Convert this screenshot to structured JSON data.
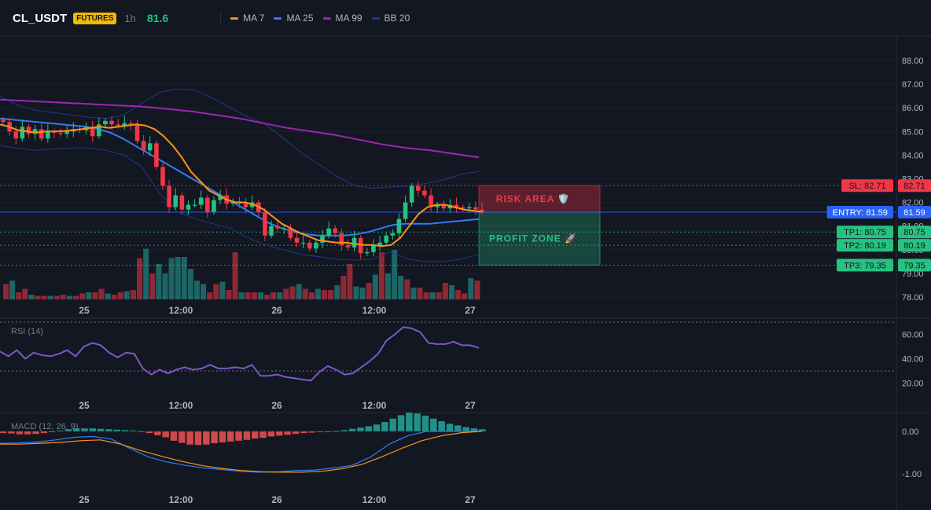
{
  "header": {
    "symbol": "CL_USDT",
    "badge": "FUTURES",
    "interval": "1h",
    "price": "81.6"
  },
  "legend": [
    {
      "name": "MA 7",
      "color": "#f7931a"
    },
    {
      "name": "MA 25",
      "color": "#2f7cf6"
    },
    {
      "name": "MA 99",
      "color": "#9c27b0"
    },
    {
      "name": "BB 20",
      "color": "#1e3a8a"
    }
  ],
  "colors": {
    "up": "#26c281",
    "down": "#f23645",
    "background": "#131722"
  },
  "chart_data": [
    {
      "type": "candlestick",
      "xlabels": [
        "25",
        "12:00",
        "26",
        "12:00",
        "27"
      ],
      "ylim": [
        78,
        88.5
      ],
      "yticks": [
        "78.00",
        "79.00",
        "80.00",
        "81.00",
        "82.00",
        "83.00",
        "84.00",
        "85.00",
        "86.00",
        "87.00",
        "88.00"
      ],
      "closes": [
        85.4,
        85.0,
        84.7,
        85.2,
        84.9,
        85.1,
        84.7,
        85.0,
        84.95,
        84.9,
        85.0,
        85.1,
        85.05,
        85.2,
        84.8,
        85.3,
        85.45,
        85.3,
        85.25,
        85.35,
        85.3,
        84.6,
        84.2,
        84.5,
        83.5,
        82.7,
        81.8,
        82.3,
        81.7,
        81.9,
        81.9,
        82.2,
        81.6,
        82.1,
        82.3,
        81.95,
        82.05,
        81.95,
        81.8,
        82.0,
        81.6,
        80.6,
        81.0,
        80.9,
        80.9,
        80.5,
        80.3,
        80.3,
        80.05,
        80.3,
        80.6,
        80.9,
        80.7,
        80.2,
        80.1,
        80.5,
        79.85,
        79.9,
        80.2,
        80.3,
        80.6,
        80.7,
        81.3,
        82.0,
        82.7,
        82.5,
        82.3,
        81.8,
        81.9,
        81.75,
        81.9,
        81.8,
        81.75,
        81.8,
        81.7,
        81.6
      ],
      "series": [
        {
          "name": "MA 7",
          "color": "#f7931a",
          "values": [
            85.3,
            85.2,
            85.05,
            85.0,
            84.95,
            85.0,
            85.0,
            85.02,
            85.05,
            85.1,
            85.15,
            85.2,
            85.15,
            85.2,
            85.25,
            85.3,
            85.25,
            85.1,
            84.8,
            84.4,
            83.9,
            83.3,
            82.9,
            82.5,
            82.3,
            82.1,
            82.0,
            82.0,
            81.9,
            81.7,
            81.4,
            81.1,
            80.9,
            80.7,
            80.55,
            80.4,
            80.35,
            80.3,
            80.3,
            80.25,
            80.2,
            80.2,
            80.15,
            80.2,
            80.5,
            81.0,
            81.5,
            81.8,
            81.9,
            81.9,
            81.8,
            81.7,
            81.65,
            81.6
          ]
        },
        {
          "name": "MA 25",
          "color": "#2f7cf6",
          "values": [
            85.55,
            85.5,
            85.45,
            85.4,
            85.35,
            85.3,
            85.25,
            85.2,
            85.1,
            84.95,
            84.7,
            84.4,
            84.1,
            83.8,
            83.5,
            83.2,
            82.9,
            82.6,
            82.3,
            82.0,
            81.7,
            81.4,
            81.1,
            80.9,
            80.75,
            80.65,
            80.6,
            80.6,
            80.6,
            80.65,
            80.75,
            80.9,
            81.05,
            81.1,
            81.1,
            81.1,
            81.15,
            81.2,
            81.25,
            81.3
          ]
        },
        {
          "name": "MA 99",
          "color": "#9c27b0",
          "values": [
            86.35,
            86.3,
            86.25,
            86.2,
            86.15,
            86.1,
            86.05,
            85.95,
            85.85,
            85.7,
            85.55,
            85.35,
            85.15,
            85.0,
            84.85,
            84.65,
            84.45,
            84.3,
            84.2,
            84.05,
            83.9
          ]
        },
        {
          "name": "BB upper",
          "color": "#1e3a8a",
          "values": [
            86.5,
            86.1,
            85.9,
            85.8,
            85.7,
            85.6,
            85.55,
            85.7,
            86.2,
            86.65,
            86.8,
            86.75,
            86.4,
            86.0,
            85.6,
            85.3,
            84.7,
            84.1,
            83.6,
            83.1,
            82.7,
            82.6,
            82.65,
            82.7,
            82.8,
            82.95,
            83.2,
            83.3
          ]
        },
        {
          "name": "BB lower",
          "color": "#1e3a8a",
          "values": [
            84.4,
            84.3,
            84.2,
            84.25,
            84.3,
            84.3,
            84.2,
            84.0,
            83.5,
            82.4,
            81.6,
            81.3,
            81.1,
            80.9,
            80.5,
            80.2,
            80.0,
            79.8,
            79.7,
            79.6,
            79.55,
            79.6,
            79.9,
            79.6,
            79.5,
            79.5,
            79.6,
            79.8
          ]
        }
      ],
      "volumes": [
        1.3,
        1.6,
        0.6,
        0.9,
        0.4,
        0.3,
        0.3,
        0.3,
        0.3,
        0.4,
        0.3,
        0.3,
        0.5,
        0.6,
        0.6,
        0.9,
        0.5,
        0.4,
        0.6,
        0.7,
        0.8,
        3.5,
        4.3,
        2.2,
        3.0,
        2.2,
        3.5,
        3.6,
        3.6,
        2.6,
        1.6,
        1.3,
        0.6,
        1.3,
        1.5,
        0.8,
        4.0,
        0.6,
        0.6,
        0.6,
        0.6,
        0.4,
        0.6,
        0.6,
        0.9,
        1.1,
        1.3,
        0.9,
        0.6,
        0.9,
        0.8,
        0.8,
        1.2,
        2.0,
        3.0,
        1.1,
        1.0,
        1.4,
        2.1,
        4.0,
        2.2,
        4.2,
        2.0,
        1.7,
        1.0,
        1.0,
        0.6,
        0.6,
        0.6,
        1.4,
        1.2,
        0.8,
        0.5,
        1.8,
        1.6
      ],
      "levels": [
        {
          "label": "SL: 82.71",
          "price": "82.71",
          "value": 82.71,
          "color": "#f23645"
        },
        {
          "label": "ENTRY: 81.59",
          "price": "81.59",
          "value": 81.59,
          "color": "#2962ff"
        },
        {
          "label": "TP1: 80.75",
          "price": "80.75",
          "value": 80.75,
          "color": "#26c281"
        },
        {
          "label": "TP2: 80.19",
          "price": "80.19",
          "value": 80.19,
          "color": "#26c281"
        },
        {
          "label": "TP3: 79.35",
          "price": "79.35",
          "value": 79.35,
          "color": "#26c281"
        }
      ],
      "zones": [
        {
          "label": "RISK AREA 🛡️",
          "from": 82.71,
          "to": 81.59,
          "color": "#f23645"
        },
        {
          "label": "PROFIT ZONE 🚀",
          "from": 81.59,
          "to": 79.35,
          "color": "#26c281"
        }
      ]
    },
    {
      "type": "line",
      "title": "RSI (14)",
      "xlabels": [
        "25",
        "12:00",
        "26",
        "12:00",
        "27"
      ],
      "ylim": [
        10,
        70
      ],
      "yticks": [
        "20.00",
        "40.00",
        "60.00"
      ],
      "bands": [
        70,
        30
      ],
      "series": [
        {
          "name": "RSI",
          "color": "#7e57c2",
          "values": [
            46,
            42,
            47,
            40,
            45,
            43,
            42,
            44,
            47,
            42,
            50,
            53,
            51,
            45,
            41,
            45,
            44,
            32,
            27,
            31,
            28,
            31,
            33,
            31,
            32,
            35,
            32,
            32,
            33,
            32,
            35,
            26,
            26,
            27,
            25,
            24,
            23,
            22,
            29,
            34,
            31,
            27,
            28,
            33,
            38,
            44,
            55,
            60,
            66,
            65,
            62,
            53,
            52,
            52,
            54,
            51,
            51,
            49
          ]
        }
      ]
    },
    {
      "type": "bar",
      "title": "MACD (12, 26, 9)",
      "xlabels": [
        "25",
        "12:00",
        "26",
        "12:00",
        "27"
      ],
      "ylim": [
        -1.35,
        0.35
      ],
      "yticks": [
        "0.00",
        "-1.00"
      ],
      "histogram": [
        -0.04,
        -0.05,
        -0.07,
        -0.07,
        -0.06,
        -0.04,
        -0.02,
        0.02,
        0.05,
        0.07,
        0.07,
        0.07,
        0.06,
        0.05,
        0.04,
        0.03,
        0.02,
        -0.01,
        -0.04,
        -0.09,
        -0.14,
        -0.22,
        -0.27,
        -0.31,
        -0.32,
        -0.31,
        -0.28,
        -0.26,
        -0.24,
        -0.22,
        -0.2,
        -0.17,
        -0.15,
        -0.12,
        -0.1,
        -0.08,
        -0.06,
        -0.04,
        -0.03,
        -0.02,
        -0.01,
        0.01,
        0.03,
        0.06,
        0.09,
        0.12,
        0.16,
        0.22,
        0.3,
        0.38,
        0.44,
        0.42,
        0.37,
        0.3,
        0.24,
        0.18,
        0.14,
        0.1,
        0.07,
        0.05
      ],
      "series": [
        {
          "name": "MACD",
          "color": "#2f7cf6",
          "values": [
            -0.28,
            -0.27,
            -0.25,
            -0.2,
            -0.14,
            -0.12,
            -0.18,
            -0.4,
            -0.6,
            -0.72,
            -0.8,
            -0.86,
            -0.9,
            -0.94,
            -0.96,
            -0.95,
            -0.92,
            -0.91,
            -0.86,
            -0.8,
            -0.6,
            -0.3,
            -0.1,
            0.0,
            0.0,
            0.0,
            0.0
          ]
        },
        {
          "name": "Signal",
          "color": "#f7931a",
          "values": [
            -0.3,
            -0.3,
            -0.28,
            -0.26,
            -0.22,
            -0.2,
            -0.3,
            -0.45,
            -0.58,
            -0.7,
            -0.8,
            -0.87,
            -0.92,
            -0.95,
            -0.96,
            -0.96,
            -0.94,
            -0.88,
            -0.78,
            -0.6,
            -0.4,
            -0.22,
            -0.1,
            -0.03,
            0.0
          ]
        }
      ]
    }
  ]
}
